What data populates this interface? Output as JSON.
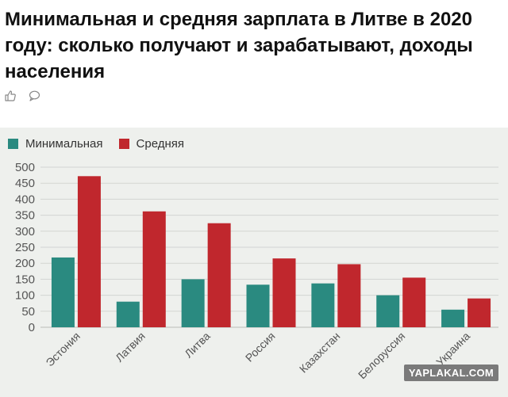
{
  "article": {
    "title": "Минимальная и средняя зарплата в Литве в 2020 году: сколько получают и зарабатывают, доходы населения",
    "icons": [
      "thumbs-up-icon",
      "comment-icon"
    ]
  },
  "chart_data": {
    "type": "bar",
    "title": "",
    "xlabel": "",
    "ylabel": "",
    "categories": [
      "Эстония",
      "Латвия",
      "Литва",
      "Россия",
      "Казахстан",
      "Белоруссия",
      "Украина"
    ],
    "series": [
      {
        "name": "Минимальная",
        "color": "#2a8a80",
        "values": [
          218,
          80,
          150,
          133,
          137,
          100,
          55
        ]
      },
      {
        "name": "Средняя",
        "color": "#c0272d",
        "values": [
          472,
          362,
          325,
          215,
          197,
          155,
          90
        ]
      }
    ],
    "ylim": [
      0,
      500
    ],
    "yticks": [
      "500",
      "450",
      "400",
      "350",
      "300",
      "250",
      "200",
      "150",
      "100",
      "50",
      "0"
    ],
    "grid": true,
    "legend": "top-left"
  },
  "watermark": "YAPLAKAL.COM",
  "colors": {
    "panel_bg": "#eef0ed",
    "grid": "#d3d5d2",
    "title": "#111111"
  }
}
